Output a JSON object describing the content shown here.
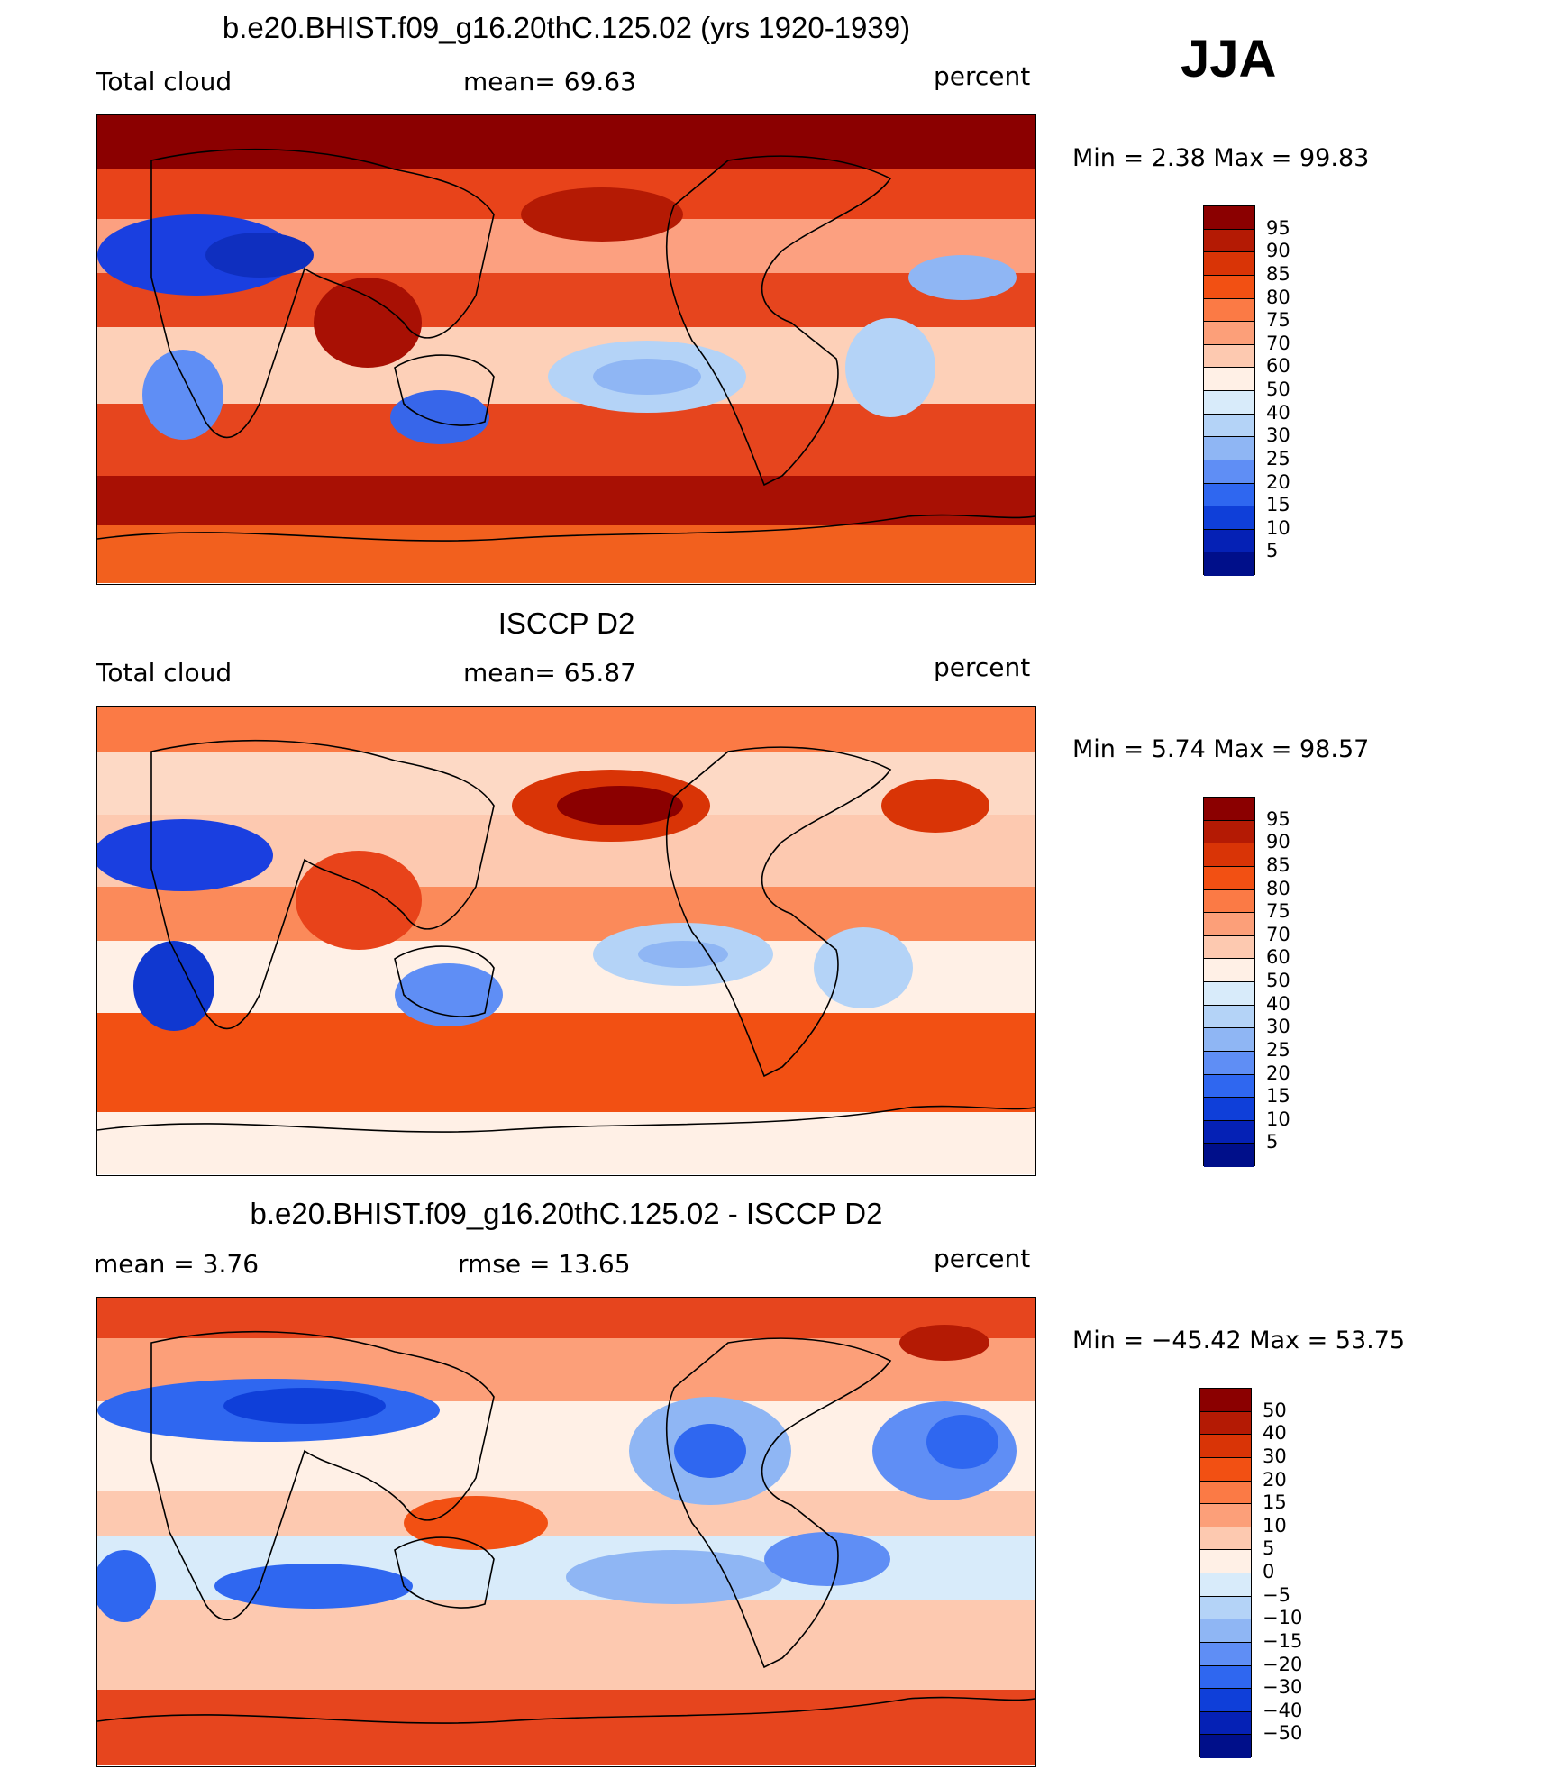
{
  "season": "JJA",
  "panels": [
    {
      "title": "b.e20.BHIST.f09_g16.20thC.125.02 (yrs 1920-1939)",
      "left_label": "Total cloud",
      "center_label": "mean=   69.63",
      "right_label": "percent",
      "minmax": "Min =    2.38  Max =   99.83",
      "mean": 69.63,
      "min": 2.38,
      "max": 99.83
    },
    {
      "title": "ISCCP D2",
      "left_label": "Total cloud",
      "center_label": "mean=   65.87",
      "right_label": "percent",
      "minmax": "Min =    5.74  Max =   98.57",
      "mean": 65.87,
      "min": 5.74,
      "max": 98.57
    },
    {
      "title": "b.e20.BHIST.f09_g16.20thC.125.02 - ISCCP D2",
      "left_label": "mean =     3.76",
      "center_label": "rmse =    13.65",
      "right_label": "percent",
      "minmax": "Min = −45.42  Max =   53.75",
      "mean": 3.76,
      "rmse": 13.65,
      "min": -45.42,
      "max": 53.75
    }
  ],
  "colorbars": {
    "abs": {
      "levels": [
        "95",
        "90",
        "85",
        "80",
        "75",
        "70",
        "60",
        "50",
        "40",
        "30",
        "25",
        "20",
        "15",
        "10",
        "5"
      ],
      "colors": [
        "#8b0000",
        "#b41a04",
        "#d93406",
        "#f25013",
        "#fb7a45",
        "#fc9f79",
        "#fdc9b0",
        "#fff0e6",
        "#d8ebfa",
        "#b4d3f7",
        "#8fb6f4",
        "#5f8ef5",
        "#2f67f0",
        "#0f3fd9",
        "#0521b5",
        "#000f8a"
      ]
    },
    "diff": {
      "levels": [
        "50",
        "40",
        "30",
        "20",
        "15",
        "10",
        "5",
        "0",
        "−5",
        "−10",
        "−15",
        "−20",
        "−30",
        "−40",
        "−50"
      ],
      "colors": [
        "#8b0000",
        "#b41a04",
        "#d93406",
        "#f25013",
        "#fb7a45",
        "#fc9f79",
        "#fdc9b0",
        "#fff0e6",
        "#d8ebfa",
        "#b4d3f7",
        "#8fb6f4",
        "#5f8ef5",
        "#2f67f0",
        "#0f3fd9",
        "#0521b5",
        "#000f8a"
      ]
    }
  }
}
